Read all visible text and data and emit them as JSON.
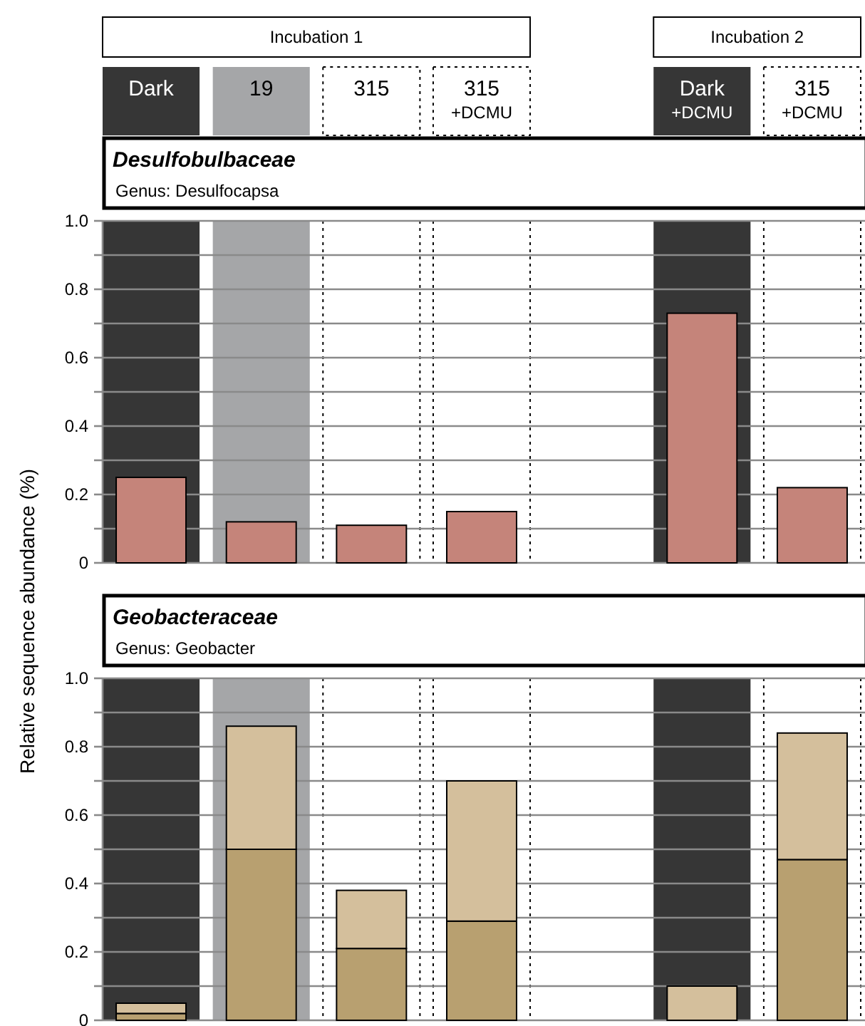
{
  "chart_data": [
    {
      "type": "bar",
      "title": "Desulfobulbaceae",
      "subtitle": "Genus:  Desulfocapsa",
      "ylabel": "Relative sequence abundance (%)",
      "annotations": [
        "Incubation 1",
        "Incubation 2"
      ],
      "categories": [
        "Dark",
        "19",
        "315",
        "315\n+DCMU",
        null,
        "Dark\n+DCMU",
        "315\n+DCMU"
      ],
      "series": [
        {
          "color": "#c5847a",
          "values": [
            0.25,
            0.12,
            0.11,
            0.15,
            null,
            0.73,
            0.22
          ]
        }
      ],
      "bands": [
        {
          "axis": "x",
          "from": "Dark",
          "to": "Dark",
          "color": "#363636"
        },
        {
          "axis": "x",
          "from": "19",
          "to": "19",
          "color": "#a5a6a8"
        },
        {
          "axis": "x",
          "from": "Dark\n+DCMU",
          "to": "Dark\n+DCMU",
          "color": "#363636"
        }
      ],
      "ylim": [
        0,
        1
      ],
      "yticks": [
        0,
        {
          "value": 0.1,
          "label": null
        },
        0.2,
        {
          "value": 0.3,
          "label": null
        },
        0.4,
        {
          "value": 0.5,
          "label": null
        },
        0.6,
        {
          "value": 0.7,
          "label": null
        },
        0.8,
        {
          "value": 0.9,
          "label": null
        },
        {
          "value": 1,
          "label": "1.0"
        }
      ],
      "grid": "y"
    },
    {
      "type": "bar",
      "title": "Geobacteraceae",
      "subtitle": "Genus:  Geobacter",
      "stacked": true,
      "categories": [
        "Dark",
        "19",
        "315",
        "315\n+DCMU",
        null,
        "Dark\n+DCMU",
        "315\n+DCMU"
      ],
      "series": [
        {
          "color": "#b8a070",
          "values": [
            0.02,
            0.5,
            0.21,
            0.29,
            null,
            0,
            0.47
          ]
        },
        {
          "color": "#d4bf9c",
          "values": [
            0.03,
            0.36,
            0.17,
            0.41,
            null,
            0.1,
            0.37
          ]
        }
      ],
      "bands": [
        {
          "axis": "x",
          "from": "Dark",
          "to": "Dark",
          "color": "#363636"
        },
        {
          "axis": "x",
          "from": "19",
          "to": "19",
          "color": "#a5a6a8"
        },
        {
          "axis": "x",
          "from": "Dark\n+DCMU",
          "to": "Dark\n+DCMU",
          "color": "#363636"
        }
      ],
      "ylim": [
        0,
        1
      ],
      "yticks": [
        0,
        {
          "value": 0.1,
          "label": null
        },
        0.2,
        {
          "value": 0.3,
          "label": null
        },
        0.4,
        {
          "value": 0.5,
          "label": null
        },
        0.6,
        {
          "value": 0.7,
          "label": null
        },
        0.8,
        {
          "value": 0.9,
          "label": null
        },
        {
          "value": 1,
          "label": "1.0"
        }
      ],
      "grid": "y",
      "tick_labels": "y"
    }
  ]
}
